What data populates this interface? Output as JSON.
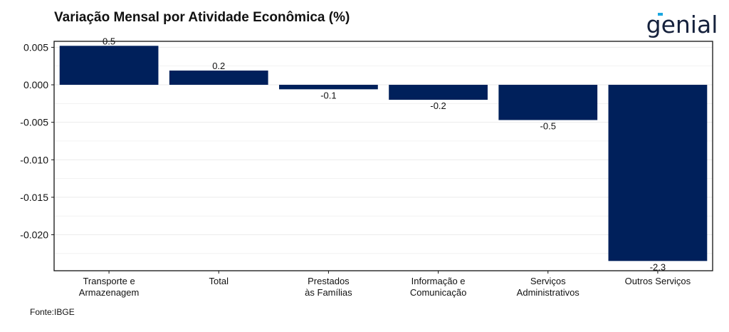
{
  "title": "Variação Mensal por Atividade Econômica (%)",
  "brand": "genial",
  "source": "Fonte:IBGE",
  "colors": {
    "bar": "#00205b",
    "grid": "#ebebeb",
    "axis": "#111111",
    "logo": "#15213c",
    "logo_accent": "#1ba7e0"
  },
  "chart_data": {
    "type": "bar",
    "categories": [
      [
        "Transporte e",
        "Armazenagem"
      ],
      [
        "Total"
      ],
      [
        "Prestados",
        "às Famílias"
      ],
      [
        "Informação e",
        "Comunicação"
      ],
      [
        "Serviços",
        "Administrativos"
      ],
      [
        "Outros Serviços"
      ]
    ],
    "values": [
      0.0052,
      0.0019,
      -0.0006,
      -0.002,
      -0.0047,
      -0.0235
    ],
    "value_labels": [
      "0.5",
      "0.2",
      "-0.1",
      "-0.2",
      "-0.5",
      "-2.3"
    ],
    "yticks": [
      0.005,
      0.0,
      -0.005,
      -0.01,
      -0.015,
      -0.02
    ],
    "ytick_labels": [
      "0.005",
      "0.000",
      "-0.005",
      "-0.010",
      "-0.015",
      "-0.020"
    ],
    "ylim": [
      -0.0248,
      0.0058
    ],
    "grid": true,
    "legend": false
  }
}
